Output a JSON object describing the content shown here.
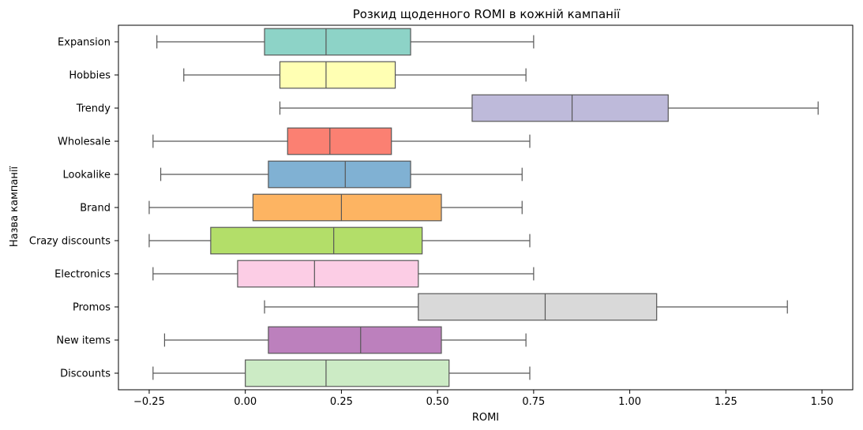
{
  "chart_data": {
    "type": "box",
    "orientation": "horizontal",
    "title": "Розкид щоденного ROMI в кожній кампанії",
    "xlabel": "ROMI",
    "ylabel": "Назва кампанії",
    "xlim": [
      -0.33,
      1.58
    ],
    "xticks": [
      -0.25,
      0.0,
      0.25,
      0.5,
      0.75,
      1.0,
      1.25,
      1.5
    ],
    "xtick_labels": [
      "−0.25",
      "0.00",
      "0.25",
      "0.50",
      "0.75",
      "1.00",
      "1.25",
      "1.50"
    ],
    "grid": false,
    "categories": [
      "Expansion",
      "Hobbies",
      "Trendy",
      "Wholesale",
      "Lookalike",
      "Brand",
      "Crazy discounts",
      "Electronics",
      "Promos",
      "New items",
      "Discounts"
    ],
    "series": [
      {
        "category": "Expansion",
        "whisker_low": -0.23,
        "q1": 0.05,
        "median": 0.21,
        "q3": 0.43,
        "whisker_high": 0.75,
        "color": "#8dd3c7"
      },
      {
        "category": "Hobbies",
        "whisker_low": -0.16,
        "q1": 0.09,
        "median": 0.21,
        "q3": 0.39,
        "whisker_high": 0.73,
        "color": "#ffffb3"
      },
      {
        "category": "Trendy",
        "whisker_low": 0.09,
        "q1": 0.59,
        "median": 0.85,
        "q3": 1.1,
        "whisker_high": 1.49,
        "color": "#bebada"
      },
      {
        "category": "Wholesale",
        "whisker_low": -0.24,
        "q1": 0.11,
        "median": 0.22,
        "q3": 0.38,
        "whisker_high": 0.74,
        "color": "#fb8072"
      },
      {
        "category": "Lookalike",
        "whisker_low": -0.22,
        "q1": 0.06,
        "median": 0.26,
        "q3": 0.43,
        "whisker_high": 0.72,
        "color": "#80b1d3"
      },
      {
        "category": "Brand",
        "whisker_low": -0.25,
        "q1": 0.02,
        "median": 0.25,
        "q3": 0.51,
        "whisker_high": 0.72,
        "color": "#fdb462"
      },
      {
        "category": "Crazy discounts",
        "whisker_low": -0.25,
        "q1": -0.09,
        "median": 0.23,
        "q3": 0.46,
        "whisker_high": 0.74,
        "color": "#b3de69"
      },
      {
        "category": "Electronics",
        "whisker_low": -0.24,
        "q1": -0.02,
        "median": 0.18,
        "q3": 0.45,
        "whisker_high": 0.75,
        "color": "#fccde5"
      },
      {
        "category": "Promos",
        "whisker_low": 0.05,
        "q1": 0.45,
        "median": 0.78,
        "q3": 1.07,
        "whisker_high": 1.41,
        "color": "#d9d9d9"
      },
      {
        "category": "New items",
        "whisker_low": -0.21,
        "q1": 0.06,
        "median": 0.3,
        "q3": 0.51,
        "whisker_high": 0.73,
        "color": "#bc80bd"
      },
      {
        "category": "Discounts",
        "whisker_low": -0.24,
        "q1": 0.0,
        "median": 0.21,
        "q3": 0.53,
        "whisker_high": 0.74,
        "color": "#ccebc5"
      }
    ]
  }
}
